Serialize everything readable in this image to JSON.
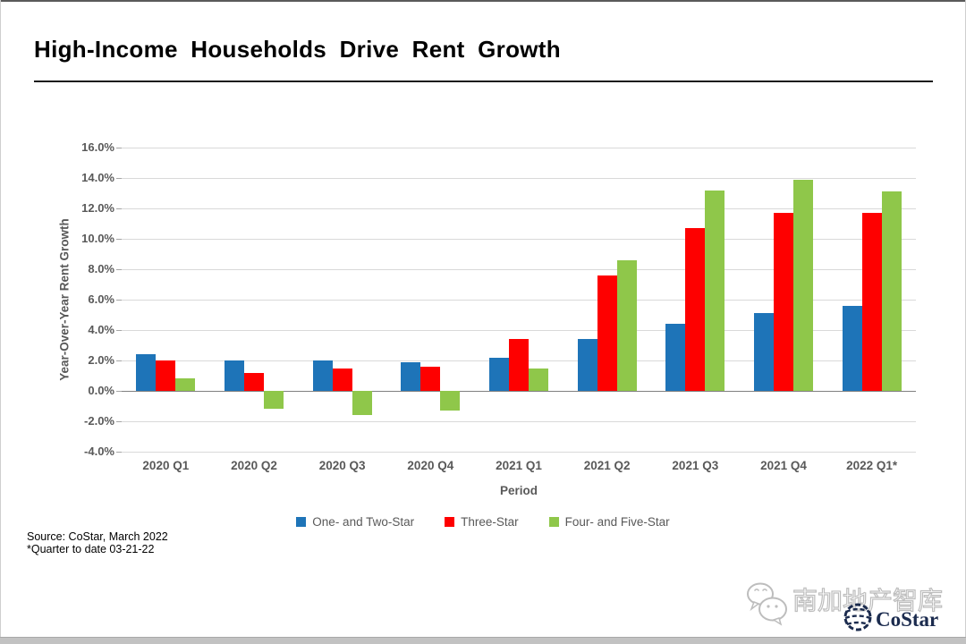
{
  "page": {
    "title": "High-Income Households Drive Rent Growth"
  },
  "chart_data": {
    "type": "bar",
    "title": "High-Income Households Drive Rent Growth",
    "categories": [
      "2020 Q1",
      "2020 Q2",
      "2020 Q3",
      "2020 Q4",
      "2021 Q1",
      "2021 Q2",
      "2021 Q3",
      "2021 Q4",
      "2022 Q1*"
    ],
    "series": [
      {
        "name": "One- and Two-Star",
        "color": "#1E74B8",
        "values": [
          2.4,
          2.0,
          2.0,
          1.9,
          2.2,
          3.4,
          4.4,
          5.1,
          5.6
        ]
      },
      {
        "name": "Three-Star",
        "color": "#FE0000",
        "values": [
          2.0,
          1.2,
          1.5,
          1.6,
          3.4,
          7.6,
          10.7,
          11.7,
          11.7
        ]
      },
      {
        "name": "Four- and Five-Star",
        "color": "#8FC74A",
        "values": [
          0.8,
          -1.2,
          -1.6,
          -1.3,
          1.5,
          8.6,
          13.2,
          13.9,
          13.1
        ]
      }
    ],
    "xlabel": "Period",
    "ylabel": "Year-Over-Year Rent Growth",
    "ylim": [
      -4,
      16
    ],
    "ytick_step": 2,
    "ytick_suffix": "%",
    "grid": true,
    "legend_position": "bottom"
  },
  "source": {
    "line1": "Source: CoStar, March 2022",
    "line2": "*Quarter to date 03-21-22"
  },
  "watermark": {
    "wechat_label": "南加地产智库",
    "logo_text": "CoStar"
  },
  "colors": {
    "gridline": "#D9D9D9",
    "zero_axis": "#808080",
    "axis_label": "#595959",
    "title_text": "#000000",
    "watermark_outline": "#BDBDBD",
    "logo_navy": "#1B2B4E",
    "bottom_bar": "#C2C2C2"
  }
}
